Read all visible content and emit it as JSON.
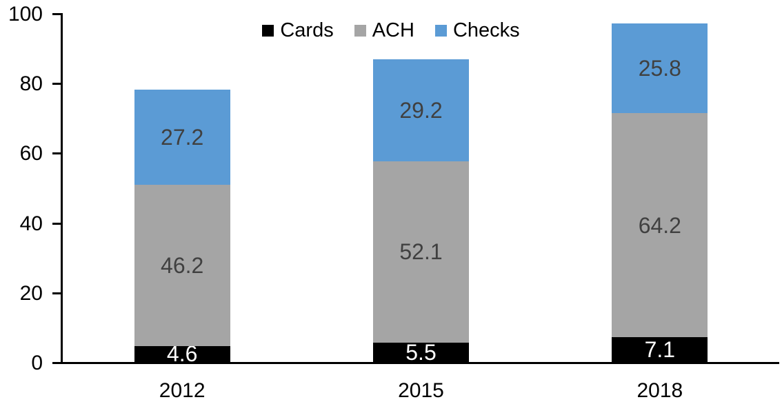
{
  "chart_data": {
    "type": "bar",
    "stacked": true,
    "title": "",
    "xlabel": "",
    "ylabel": "",
    "categories": [
      "2012",
      "2015",
      "2018"
    ],
    "series": [
      {
        "name": "Cards",
        "color": "#000000",
        "label_color": "#ffffff",
        "values": [
          4.6,
          5.5,
          7.1
        ]
      },
      {
        "name": "ACH",
        "color": "#a5a5a5",
        "label_color": "#404040",
        "values": [
          46.2,
          52.1,
          64.2
        ]
      },
      {
        "name": "Checks",
        "color": "#5b9bd5",
        "label_color": "#404040",
        "values": [
          27.2,
          29.2,
          25.8
        ]
      }
    ],
    "stack_totals": [
      78.0,
      86.8,
      97.1
    ],
    "y_axis": {
      "min": 0,
      "max": 100,
      "tick_interval": 20,
      "ticks": [
        0,
        20,
        40,
        60,
        80,
        100
      ]
    },
    "grid": "off",
    "legend": {
      "position": "top",
      "entries": [
        "Cards",
        "ACH",
        "Checks"
      ]
    },
    "colors": {
      "background": "#ffffff",
      "axis": "#000000",
      "cards": "#000000",
      "ach": "#a5a5a5",
      "checks": "#5b9bd5",
      "segment_label_dark": "#404040",
      "segment_label_light": "#ffffff"
    }
  }
}
